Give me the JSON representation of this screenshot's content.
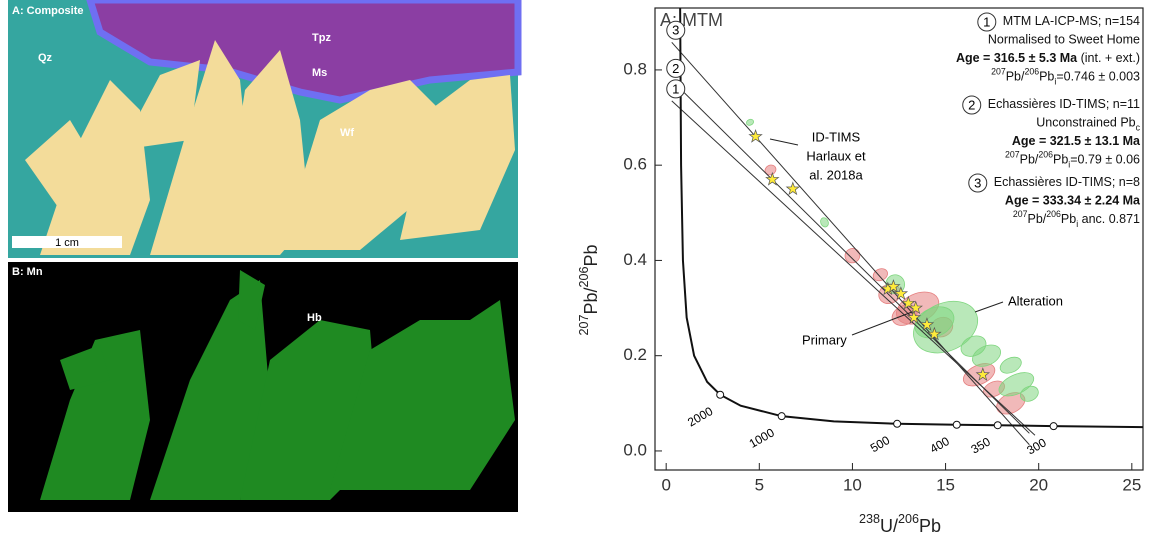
{
  "figure": {
    "panel_a": {
      "title": "A: Composite",
      "labels": [
        "Qz",
        "Tpz",
        "Ms",
        "Wf"
      ],
      "scale": "1 cm"
    },
    "panel_b": {
      "title": "B: Mn",
      "labels": [
        "Hb"
      ]
    }
  },
  "chart_data": {
    "type": "tera-wasserburg",
    "title": "A: MTM",
    "x_label": {
      "parts": [
        "238",
        "U/",
        "206",
        "Pb"
      ],
      "kinds": [
        "sup",
        "n",
        "sup",
        "n"
      ]
    },
    "y_label": {
      "parts": [
        "207",
        "Pb/",
        "206",
        "Pb"
      ],
      "kinds": [
        "sup",
        "n",
        "sup",
        "n"
      ]
    },
    "xlim": [
      -0.6,
      25.6
    ],
    "ylim": [
      -0.04,
      0.93
    ],
    "xticks": [
      0,
      5,
      10,
      15,
      20,
      25
    ],
    "yticks": [
      {
        "value": 0,
        "label": "0.0"
      },
      0.2,
      0.4,
      0.6,
      0.8
    ],
    "concordia": {
      "x": [
        0.75,
        0.8,
        0.9,
        1.1,
        1.5,
        2.2,
        2.9,
        4,
        6.2,
        9,
        12.4,
        15.6,
        17.8,
        20.8,
        25.6
      ],
      "y": [
        0.93,
        0.6,
        0.4,
        0.28,
        0.2,
        0.145,
        0.118,
        0.095,
        0.073,
        0.062,
        0.057,
        0.055,
        0.054,
        0.052,
        0.05
      ],
      "ages": [
        2000,
        1000,
        500,
        400,
        350,
        300
      ],
      "age_x": [
        2.9,
        6.2,
        12.4,
        15.6,
        17.8,
        20.8
      ],
      "age_y": [
        0.118,
        0.073,
        0.057,
        0.055,
        0.054,
        0.052
      ]
    },
    "lines": [
      {
        "label": "1",
        "x": [
          0.3,
          19.8
        ],
        "y": [
          0.735,
          0.033
        ]
      },
      {
        "label": "2",
        "x": [
          0.3,
          19.5
        ],
        "y": [
          0.778,
          0.037
        ]
      },
      {
        "label": "3",
        "x": [
          0.3,
          19.5
        ],
        "y": [
          0.858,
          0.013
        ]
      }
    ],
    "ellipse_series": [
      {
        "color": "#e57f7f",
        "x": [
          12,
          13.5,
          12.8,
          10,
          5.6,
          16.8,
          18.5,
          14.8,
          17.6,
          11.5
        ],
        "y": [
          0.33,
          0.3,
          0.285,
          0.41,
          0.59,
          0.16,
          0.1,
          0.26,
          0.13,
          0.37
        ],
        "x_err": [
          0.6,
          1.2,
          0.7,
          0.4,
          0.3,
          0.9,
          0.8,
          0.6,
          0.6,
          0.4
        ],
        "y_err": [
          0.02,
          0.03,
          0.02,
          0.015,
          0.01,
          0.02,
          0.02,
          0.02,
          0.015,
          0.012
        ]
      },
      {
        "color": "#7fd67f",
        "x": [
          15,
          14.4,
          17.2,
          18.5,
          18.8,
          16.5,
          19.5,
          4.5,
          8.5,
          12.3
        ],
        "y": [
          0.26,
          0.27,
          0.2,
          0.18,
          0.14,
          0.22,
          0.12,
          0.69,
          0.48,
          0.35
        ],
        "x_err": [
          1.8,
          1.1,
          0.8,
          0.6,
          1.0,
          0.7,
          0.5,
          0.2,
          0.2,
          0.5
        ],
        "y_err": [
          0.05,
          0.03,
          0.02,
          0.015,
          0.02,
          0.02,
          0.015,
          0.006,
          0.01,
          0.02
        ]
      }
    ],
    "stars": {
      "color": "#ffeb3b",
      "x": [
        4.8,
        5.7,
        6.8,
        11.9,
        12.2,
        12.6,
        13.0,
        13.4,
        13.3,
        14.0,
        14.4,
        17.0
      ],
      "y": [
        0.66,
        0.57,
        0.55,
        0.34,
        0.345,
        0.33,
        0.31,
        0.3,
        0.28,
        0.265,
        0.245,
        0.16
      ]
    },
    "annotations": {
      "id_tims": [
        "ID-TIMS",
        "Harlaux et",
        "al. 2018a"
      ],
      "alteration": "Alteration",
      "primary": "Primary"
    },
    "legend": [
      {
        "number": "1",
        "lines": [
          {
            "parts": [
              "MTM LA-ICP-MS; n=154"
            ],
            "kinds": [
              "n"
            ]
          },
          {
            "parts": [
              "Normalised to Sweet Home"
            ],
            "kinds": [
              "n"
            ]
          },
          {
            "parts": [
              "Age = 316.5 ± 5.3 Ma",
              " (int. + ext.)"
            ],
            "kinds": [
              "b",
              "n"
            ]
          },
          {
            "parts": [
              "207",
              "Pb/",
              "206",
              "Pb",
              "i",
              "=0.746 ± 0.003"
            ],
            "kinds": [
              "sup",
              "n",
              "sup",
              "n",
              "sub",
              "n"
            ]
          }
        ]
      },
      {
        "number": "2",
        "lines": [
          {
            "parts": [
              "Echassières ID-TIMS; n=11"
            ],
            "kinds": [
              "n"
            ]
          },
          {
            "parts": [
              "Unconstrained Pb",
              "c"
            ],
            "kinds": [
              "n",
              "sub"
            ]
          },
          {
            "parts": [
              "Age = 321.5 ± 13.1 Ma"
            ],
            "kinds": [
              "b"
            ]
          },
          {
            "parts": [
              "207",
              "Pb/",
              "206",
              "Pb",
              "i",
              "=0.79 ± 0.06"
            ],
            "kinds": [
              "sup",
              "n",
              "sup",
              "n",
              "sub",
              "n"
            ]
          }
        ]
      },
      {
        "number": "3",
        "lines": [
          {
            "parts": [
              "Echassières ID-TIMS; n=8"
            ],
            "kinds": [
              "n"
            ]
          },
          {
            "parts": [
              "Age = 333.34 ± 2.24 Ma"
            ],
            "kinds": [
              "b"
            ]
          },
          {
            "parts": [
              "207",
              "Pb/",
              "206",
              "Pb",
              "i",
              " anc. 0.871"
            ],
            "kinds": [
              "sup",
              "n",
              "sup",
              "n",
              "sub",
              "n"
            ]
          }
        ]
      }
    ]
  }
}
